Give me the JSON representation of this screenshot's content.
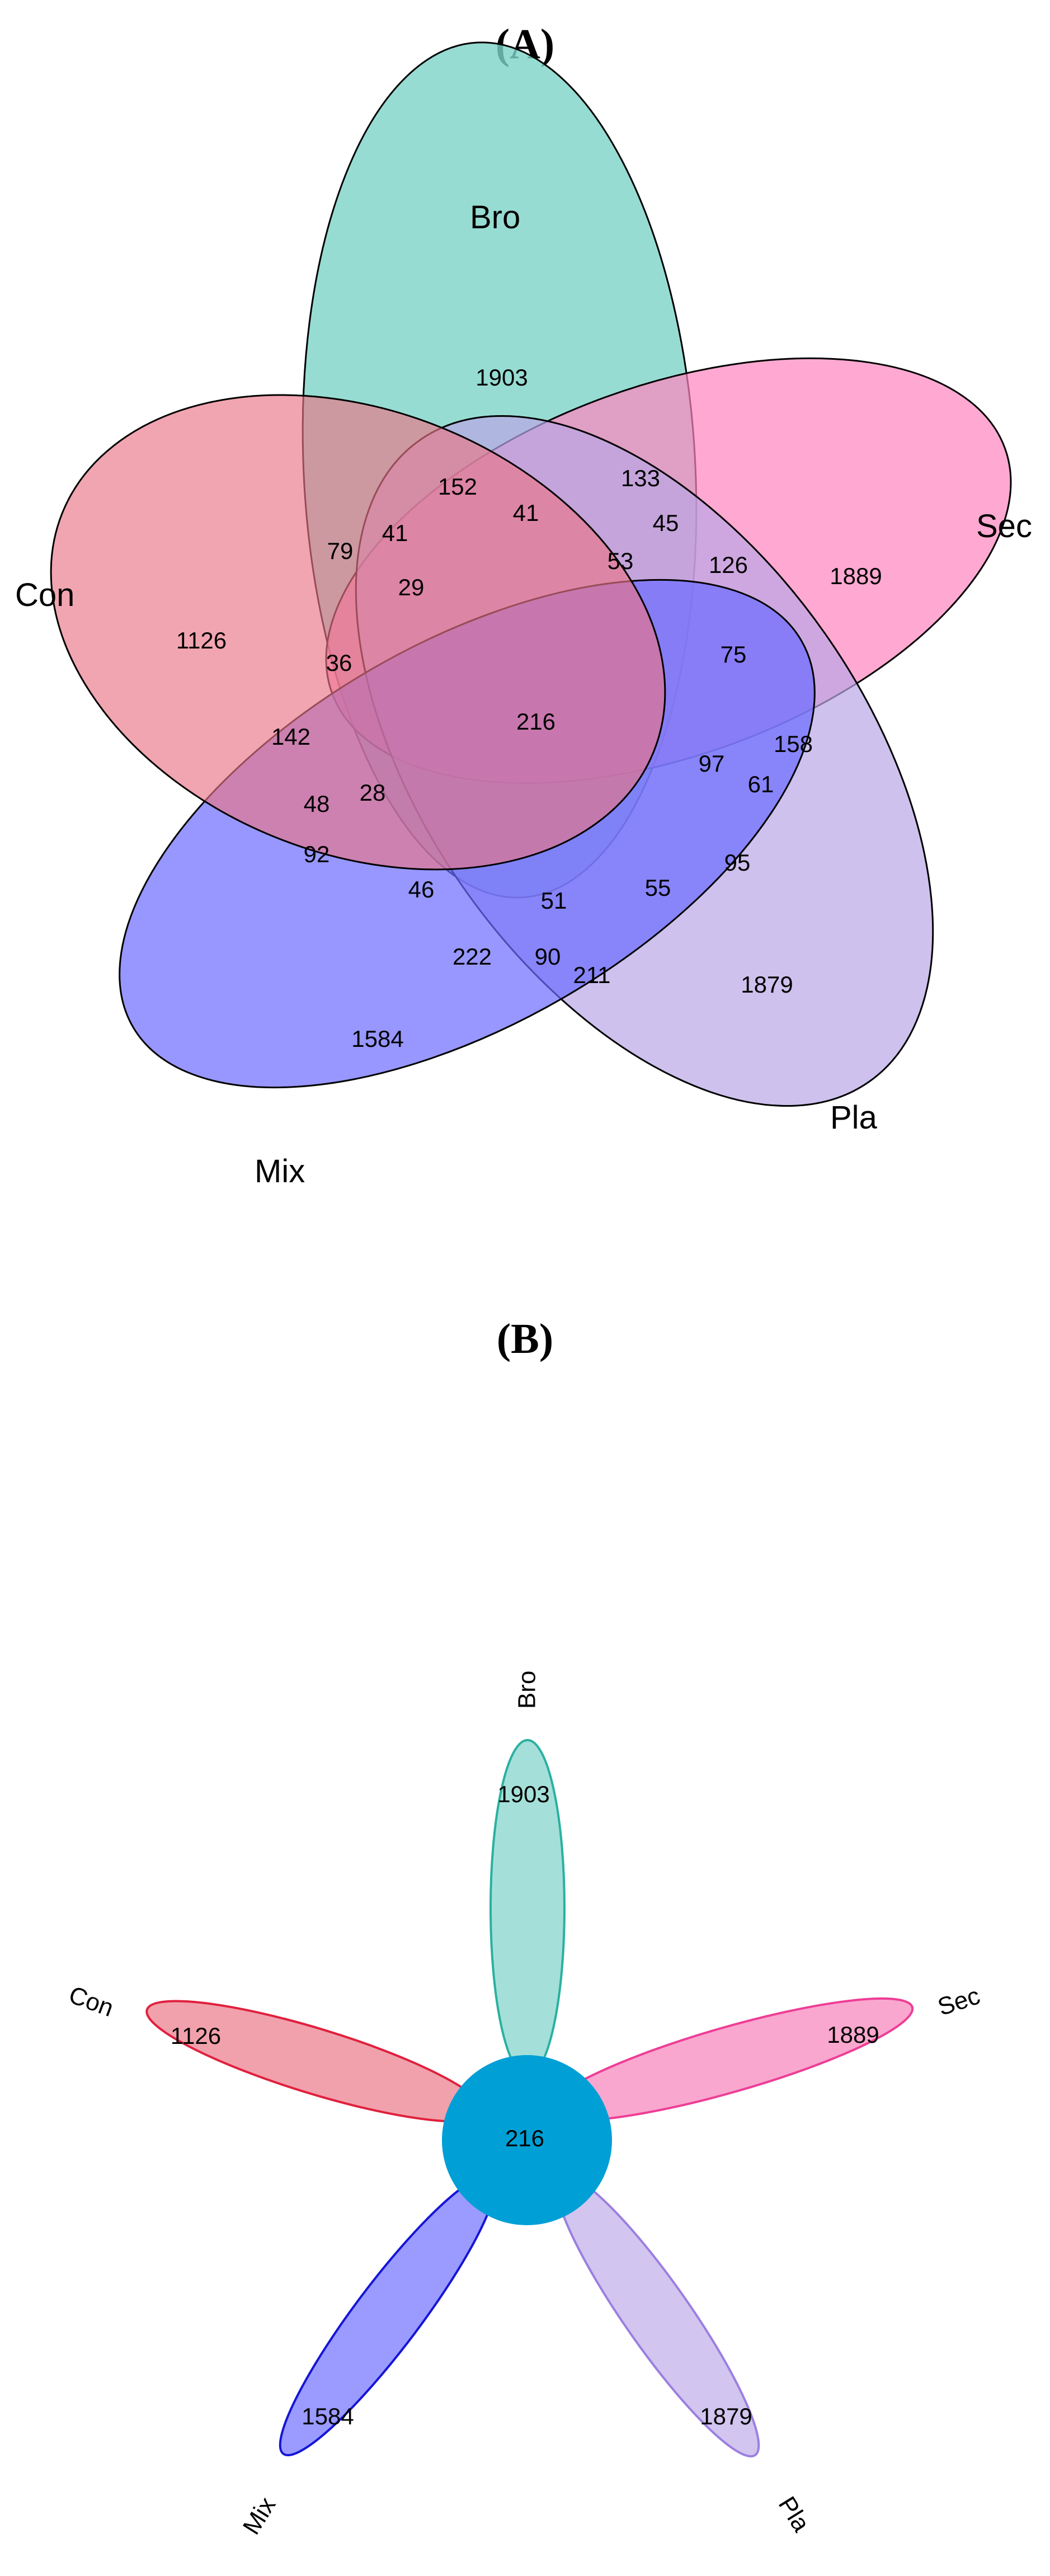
{
  "panel_a": {
    "title": "(A)",
    "sets": [
      {
        "name": "Bro",
        "color": "#7dd3c8"
      },
      {
        "name": "Sec",
        "color": "#ff85bf"
      },
      {
        "name": "Pla",
        "color": "#b9a6e6"
      },
      {
        "name": "Mix",
        "color": "#6b6bff"
      },
      {
        "name": "Con",
        "color": "#e97585"
      }
    ],
    "regions": [
      "1903",
      "152",
      "133",
      "41",
      "41",
      "79",
      "29",
      "53",
      "45",
      "126",
      "1889",
      "1126",
      "36",
      "75",
      "216",
      "142",
      "97",
      "158",
      "61",
      "48",
      "28",
      "92",
      "95",
      "46",
      "51",
      "55",
      "222",
      "90",
      "211",
      "1879",
      "1584"
    ]
  },
  "panel_b": {
    "title": "(B)",
    "core_value": "216",
    "core_color": "#009fd6",
    "petals": [
      {
        "name": "Bro",
        "value": "1903",
        "fill": "#a4e0d9",
        "stroke": "#2ab0a0"
      },
      {
        "name": "Sec",
        "value": "1889",
        "fill": "#f9a7ce",
        "stroke": "#ee3d96"
      },
      {
        "name": "Pla",
        "value": "1879",
        "fill": "#d2c5ef",
        "stroke": "#9b7fe0"
      },
      {
        "name": "Mix",
        "value": "1584",
        "fill": "#9a9aff",
        "stroke": "#1515d6"
      },
      {
        "name": "Con",
        "value": "1126",
        "fill": "#f1a1ab",
        "stroke": "#e0203e"
      }
    ]
  }
}
